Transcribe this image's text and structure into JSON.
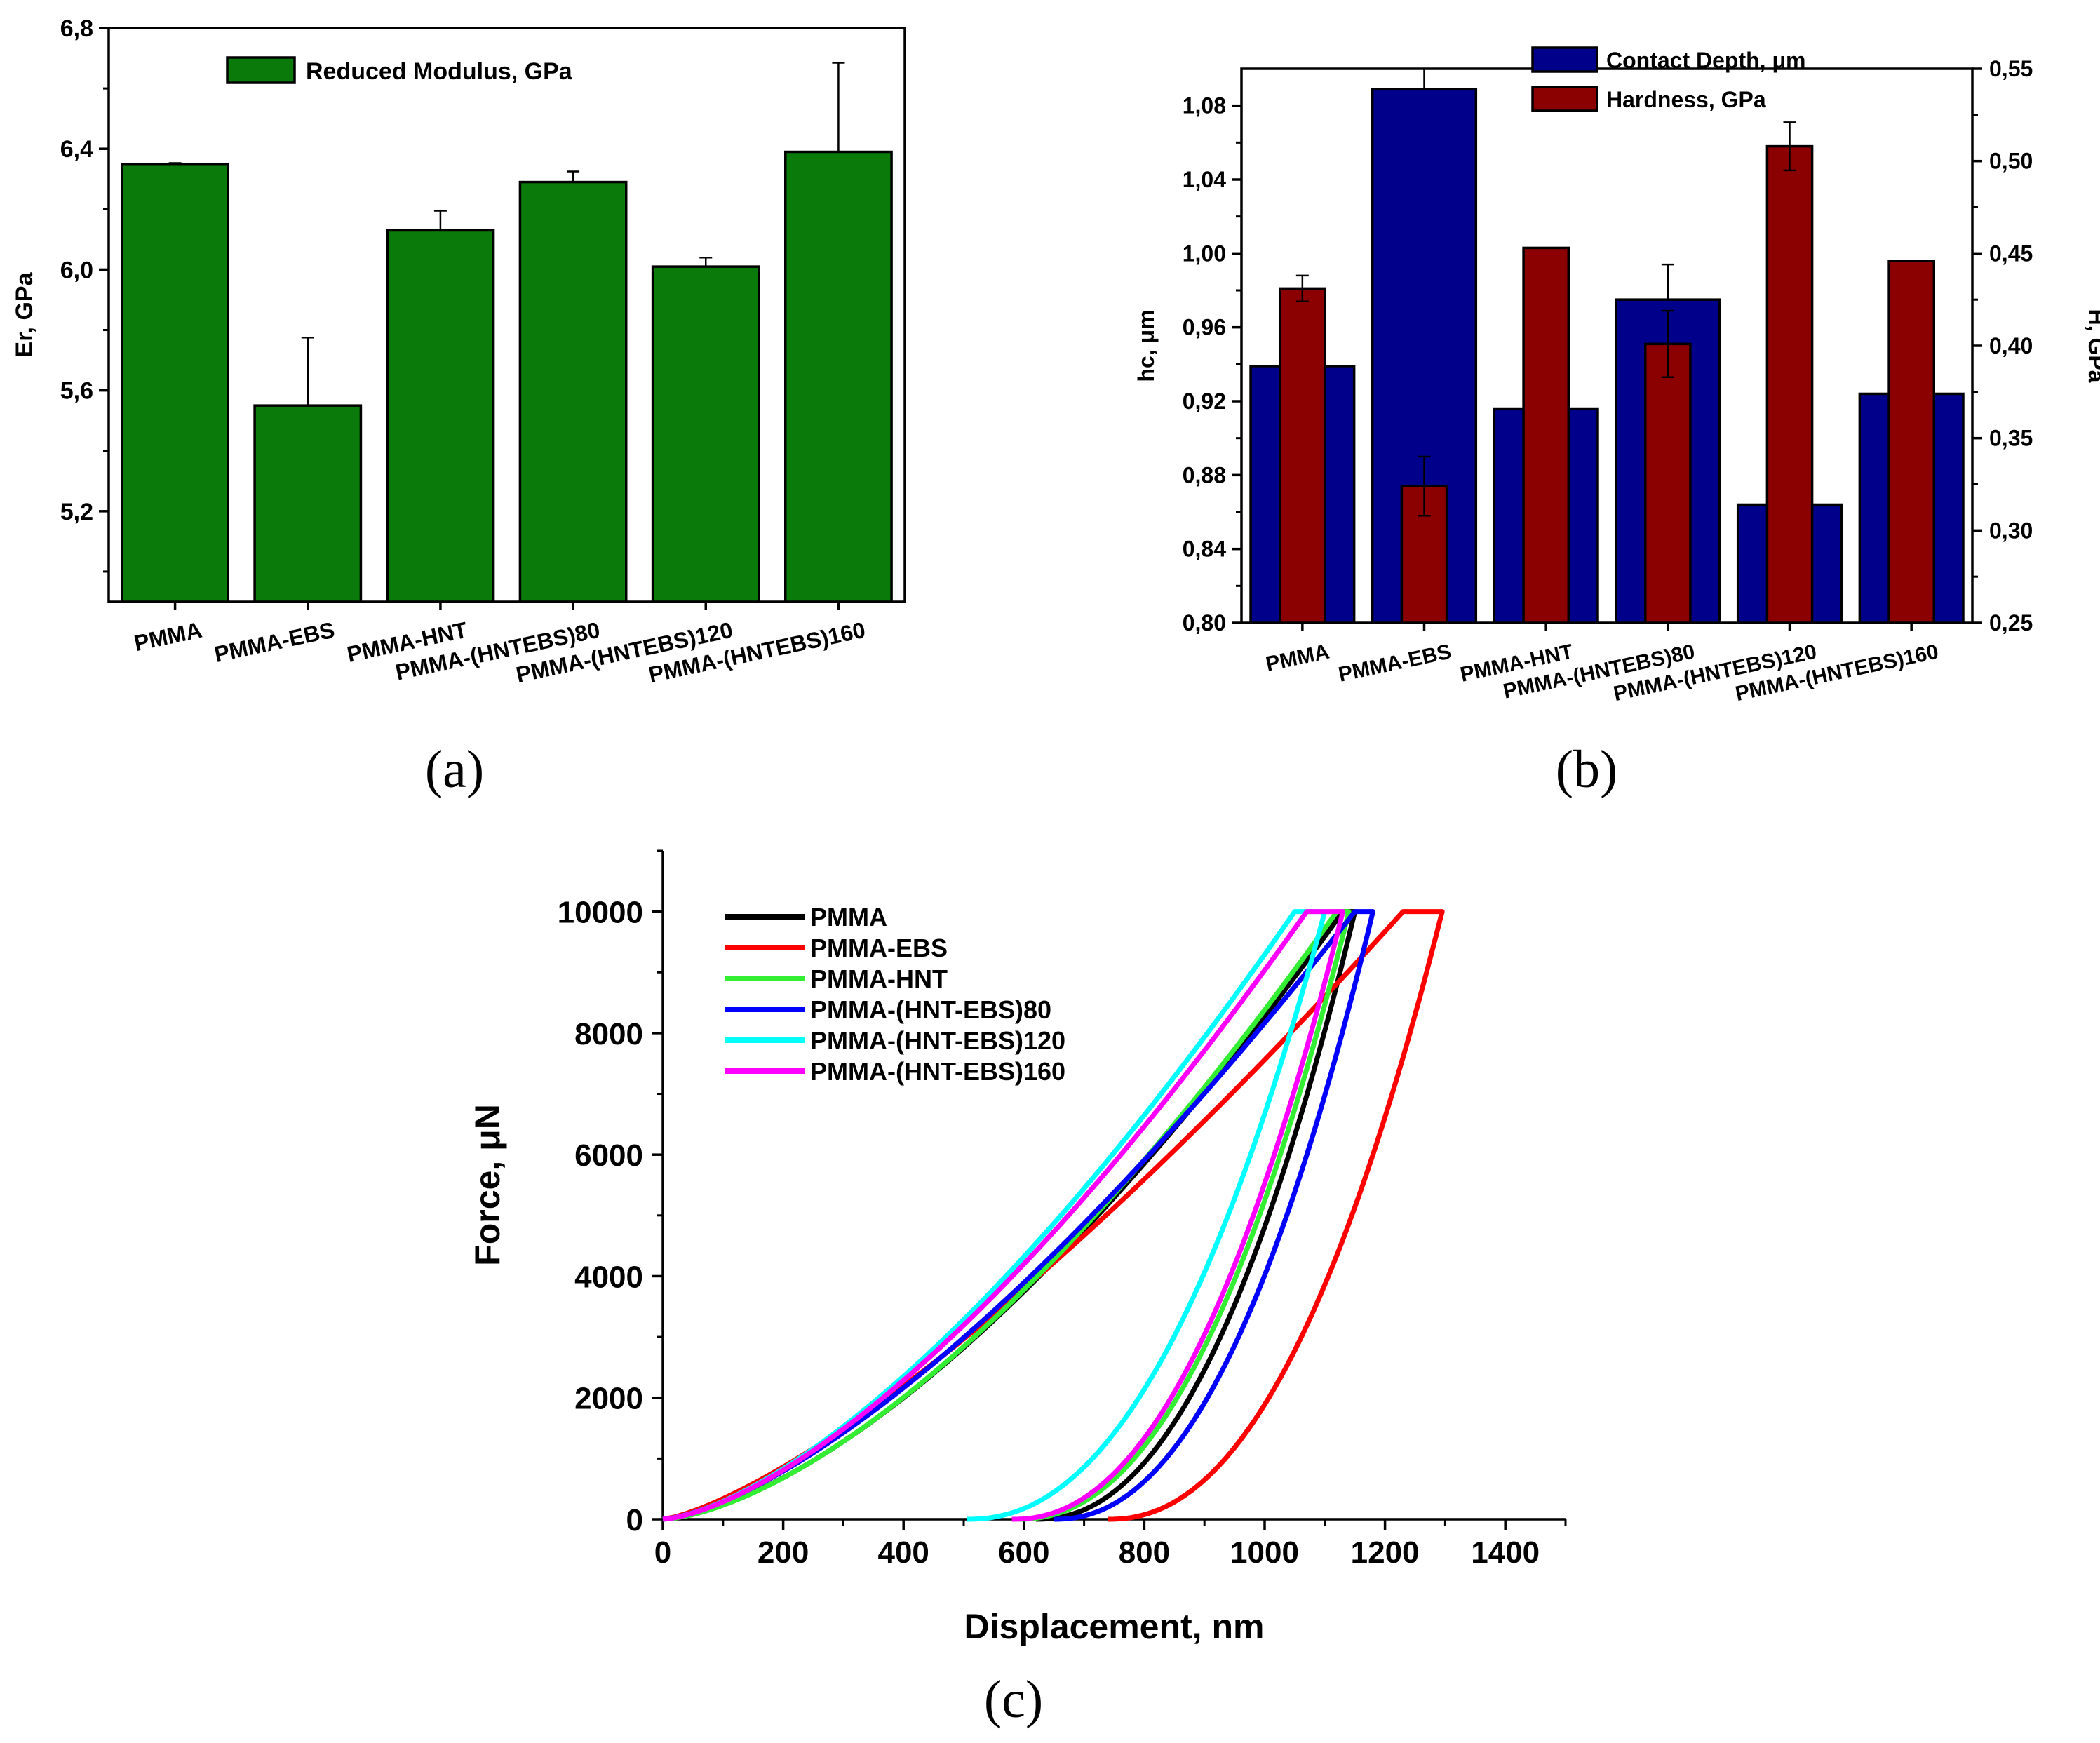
{
  "chart_data": [
    {
      "id": "a",
      "type": "bar",
      "panel_label": "(a)",
      "title": "",
      "categories": [
        "PMMA",
        "PMMA-EBS",
        "PMMA-HNT",
        "PMMA-(HNTEBS)80",
        "PMMA-(HNTEBS)120",
        "PMMA-(HNTEBS)160"
      ],
      "series": [
        {
          "name": "Reduced Modulus, GPa",
          "values": [
            6.35,
            5.55,
            6.13,
            6.29,
            6.01,
            6.39
          ],
          "errors": [
            0.003,
            0.225,
            0.065,
            0.035,
            0.03,
            0.295
          ],
          "color": "#0a7a0a"
        }
      ],
      "xlabel": "",
      "ylabel": "Er, GPa",
      "ylim": [
        4.9,
        6.8
      ],
      "yticks": [
        "5,2",
        "5,6",
        "6,0",
        "6,4",
        "6,8"
      ],
      "ytick_values": [
        5.2,
        5.6,
        6.0,
        6.4,
        6.8
      ],
      "legend": "top-center"
    },
    {
      "id": "b",
      "type": "bar",
      "panel_label": "(b)",
      "title": "",
      "categories": [
        "PMMA",
        "PMMA-EBS",
        "PMMA-HNT",
        "PMMA-(HNTEBS)80",
        "PMMA-(HNTEBS)120",
        "PMMA-(HNTEBS)160"
      ],
      "series": [
        {
          "name": "Contact Depth, μm",
          "axis": "left",
          "values": [
            0.939,
            1.089,
            0.916,
            0.975,
            0.864,
            0.924
          ],
          "errors": [
            0,
            0.011,
            0,
            0.019,
            0,
            0
          ],
          "color": "#00008b"
        },
        {
          "name": "Hardness, GPa",
          "axis": "right",
          "values": [
            0.431,
            0.324,
            0.453,
            0.401,
            0.508,
            0.446
          ],
          "errors": [
            0.007,
            0.016,
            0.0005,
            0.018,
            0.013,
            0.0005
          ],
          "color": "#8b0000"
        }
      ],
      "ylabel": "hc, μm",
      "ylim": [
        0.8,
        1.1
      ],
      "yticks": [
        "0,80",
        "0,84",
        "0,88",
        "0,92",
        "0,96",
        "1,00",
        "1,04",
        "1,08"
      ],
      "ytick_values": [
        0.8,
        0.84,
        0.88,
        0.92,
        0.96,
        1.0,
        1.04,
        1.08
      ],
      "y2label": "H, GPa",
      "y2lim": [
        0.25,
        0.55
      ],
      "y2ticks": [
        "0,25",
        "0,30",
        "0,35",
        "0,40",
        "0,45",
        "0,50",
        "0,55"
      ],
      "y2tick_values": [
        0.25,
        0.3,
        0.35,
        0.4,
        0.45,
        0.5,
        0.55
      ],
      "legend": "top-right"
    },
    {
      "id": "c",
      "type": "line",
      "panel_label": "(c)",
      "title": "",
      "xlabel": "Displacement, nm",
      "ylabel": "Force, μN",
      "xlim": [
        0,
        1500
      ],
      "ylim": [
        0,
        11000
      ],
      "xticks": [
        0,
        200,
        400,
        600,
        800,
        1000,
        1200,
        1400
      ],
      "yticks": [
        0,
        2000,
        4000,
        6000,
        8000,
        10000
      ],
      "legend": "top-left",
      "series": [
        {
          "name": "PMMA",
          "color": "#000000",
          "h_max": 1130,
          "h_hold": 1150,
          "h_final": 620,
          "load_exp": 1.55,
          "unload_exp": 2.2
        },
        {
          "name": "PMMA-EBS",
          "color": "#ff0000",
          "h_max": 1230,
          "h_hold": 1295,
          "h_final": 740,
          "load_exp": 1.35,
          "unload_exp": 2.2
        },
        {
          "name": "PMMA-HNT",
          "color": "#33ee33",
          "h_max": 1120,
          "h_hold": 1140,
          "h_final": 590,
          "load_exp": 1.56,
          "unload_exp": 2.2
        },
        {
          "name": "PMMA-(HNT-EBS)80",
          "color": "#0000ff",
          "h_max": 1150,
          "h_hold": 1180,
          "h_final": 650,
          "load_exp": 1.45,
          "unload_exp": 2.2
        },
        {
          "name": "PMMA-(HNT-EBS)120",
          "color": "#00ffff",
          "h_max": 1050,
          "h_hold": 1100,
          "h_final": 505,
          "load_exp": 1.5,
          "unload_exp": 2.2
        },
        {
          "name": "PMMA-(HNT-EBS)160",
          "color": "#ff00ff",
          "h_max": 1070,
          "h_hold": 1130,
          "h_final": 580,
          "load_exp": 1.5,
          "unload_exp": 2.2
        }
      ],
      "max_force": 10000
    }
  ]
}
